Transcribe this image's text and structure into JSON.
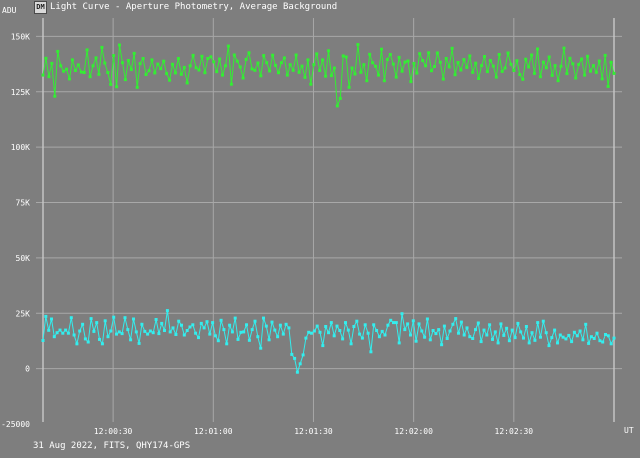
{
  "window": {
    "title": "Light Curve - Aperture Photometry, Average Background",
    "icon": "app-logo-icon",
    "icon_text": "DM"
  },
  "footer": {
    "caption": "31 Aug 2022, FITS, QHY174-GPS"
  },
  "chart_data": {
    "type": "line",
    "ylabel": "ADU",
    "xlabel": "UT",
    "x_start": "12:00:09",
    "x_end": "12:03:00",
    "ylim": [
      -25000,
      150000
    ],
    "grid": true,
    "y_ticks": [
      "150K",
      "125K",
      "100K",
      "75K",
      "50K",
      "25K",
      "0",
      "-25000"
    ],
    "x_ticks": [
      "12:00:30",
      "12:01:00",
      "12:01:30",
      "12:02:00",
      "12:02:30"
    ],
    "series": [
      {
        "color": "#33ee33",
        "values": [
          132500,
          140100,
          131800,
          137800,
          123000,
          143200,
          136700,
          134300,
          135200,
          130800,
          139400,
          134600,
          137100,
          133900,
          133700,
          143900,
          131800,
          136700,
          140300,
          132900,
          145000,
          138000,
          133700,
          128300,
          141300,
          127300,
          146100,
          138100,
          130500,
          139100,
          135000,
          142300,
          127000,
          137700,
          140000,
          132800,
          134500,
          139400,
          133500,
          137500,
          135400,
          138800,
          133200,
          130200,
          137400,
          133500,
          140000,
          132900,
          136000,
          129000,
          136700,
          141400,
          135800,
          134800,
          141000,
          133600,
          140000,
          140800,
          138500,
          134100,
          139800,
          132500,
          136700,
          145600,
          128400,
          141600,
          138800,
          136200,
          131200,
          139600,
          142600,
          135300,
          134700,
          138000,
          132200,
          141300,
          138100,
          134400,
          141500,
          136900,
          133600,
          138100,
          140300,
          132500,
          137200,
          134700,
          141600,
          133800,
          136600,
          131500,
          139400,
          128400,
          137200,
          142100,
          134600,
          139400,
          132000,
          143500,
          132300,
          135700,
          118600,
          122000,
          141200,
          140700,
          127000,
          135700,
          133000,
          146300,
          133800,
          137200,
          130000,
          141900,
          138100,
          136500,
          132500,
          144200,
          130000,
          139600,
          141800,
          137500,
          131600,
          140500,
          134300,
          138400,
          138900,
          129600,
          137800,
          133400,
          142200,
          139100,
          136700,
          142600,
          134500,
          136400,
          142500,
          138300,
          130700,
          140000,
          136200,
          144600,
          132700,
          138200,
          134800,
          139500,
          136000,
          141200,
          133800,
          137900,
          131000,
          136800,
          140900,
          134100,
          139100,
          136600,
          131600,
          141800,
          134200,
          135700,
          142500,
          137400,
          134600,
          139000,
          132800,
          130600,
          139700,
          136200,
          141600,
          133300,
          144300,
          131800,
          138400,
          135800,
          140700,
          132400,
          136800,
          130000,
          136500,
          144700,
          133200,
          140100,
          137600,
          131200,
          137300,
          139800,
          132500,
          141000,
          134300,
          136800,
          133800,
          138900,
          130800,
          141400,
          127400,
          138300,
          133300
        ],
        "label": ""
      },
      {
        "color": "#33eeee",
        "values": [
          12700,
          23600,
          17300,
          22400,
          14400,
          16200,
          17400,
          16000,
          17400,
          16000,
          23000,
          15200,
          11200,
          17000,
          20000,
          13400,
          12000,
          22600,
          16800,
          20800,
          13200,
          11200,
          21600,
          14400,
          17000,
          23200,
          15600,
          16600,
          15800,
          23000,
          17600,
          13000,
          22400,
          16600,
          11400,
          20000,
          16800,
          15600,
          17000,
          16200,
          22200,
          15800,
          20400,
          17200,
          26200,
          16600,
          18400,
          15400,
          21400,
          19600,
          15200,
          17200,
          18800,
          19800,
          16000,
          14000,
          20400,
          18400,
          21200,
          15600,
          20800,
          14800,
          12600,
          21800,
          17600,
          11200,
          19600,
          16600,
          22800,
          13200,
          16400,
          16600,
          19800,
          12800,
          17600,
          21400,
          14400,
          9200,
          22800,
          19200,
          13000,
          21000,
          17400,
          14400,
          19600,
          15600,
          20000,
          18400,
          6400,
          4600,
          -1600,
          2200,
          6200,
          13800,
          16400,
          16000,
          17000,
          19200,
          16400,
          10400,
          19000,
          16200,
          20800,
          14800,
          19200,
          17200,
          13400,
          20800,
          17400,
          11200,
          19000,
          21400,
          15600,
          13800,
          19800,
          16000,
          7600,
          19800,
          17200,
          14400,
          16800,
          15200,
          19600,
          21800,
          20800,
          20800,
          11600,
          24800,
          17600,
          20200,
          15200,
          21600,
          12400,
          20200,
          17000,
          14200,
          22400,
          13000,
          17200,
          15800,
          17600,
          10800,
          19200,
          13600,
          17000,
          20000,
          22600,
          16000,
          21000,
          15200,
          18400,
          14400,
          13600,
          17600,
          20600,
          12200,
          17400,
          15200,
          19800,
          13200,
          16600,
          11600,
          20200,
          15000,
          18200,
          12600,
          17400,
          14000,
          20400,
          16600,
          13800,
          19000,
          11600,
          16200,
          12800,
          20800,
          14200,
          21400,
          16200,
          10400,
          14000,
          17400,
          11600,
          15200,
          14200,
          13400,
          15000,
          12200,
          16400,
          14800,
          17000,
          13000,
          20000,
          11400,
          14400,
          13600,
          16000,
          12600,
          12000,
          15400,
          14800,
          11200,
          13800
        ],
        "label": ""
      }
    ]
  }
}
